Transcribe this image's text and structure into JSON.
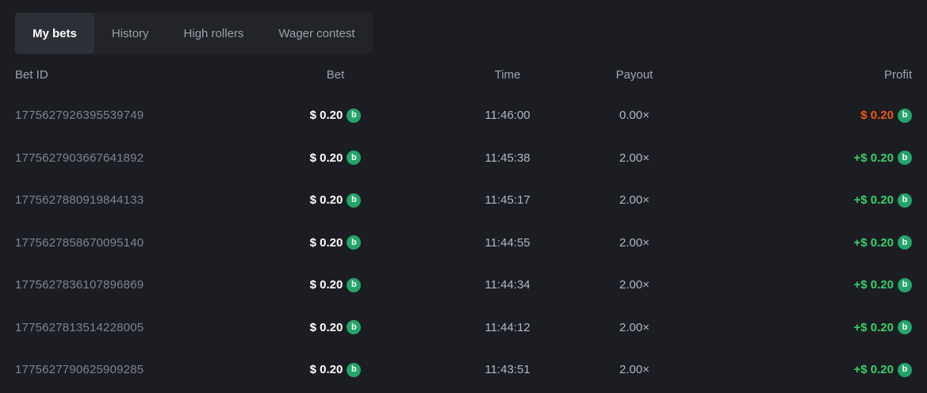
{
  "tabs": [
    {
      "id": "my-bets",
      "label": "My bets",
      "active": true
    },
    {
      "id": "history",
      "label": "History",
      "active": false
    },
    {
      "id": "high-rollers",
      "label": "High rollers",
      "active": false
    },
    {
      "id": "wager-contest",
      "label": "Wager contest",
      "active": false
    }
  ],
  "table": {
    "headers": {
      "bet_id": "Bet ID",
      "bet": "Bet",
      "time": "Time",
      "payout": "Payout",
      "profit": "Profit"
    },
    "coin_icon_glyph": "b",
    "rows": [
      {
        "bet_id": "1775627926395539749",
        "bet": "$ 0.20",
        "time": "11:46:00",
        "payout": "0.00×",
        "profit": "$ 0.20",
        "result": "loss"
      },
      {
        "bet_id": "1775627903667641892",
        "bet": "$ 0.20",
        "time": "11:45:38",
        "payout": "2.00×",
        "profit": "+$ 0.20",
        "result": "win"
      },
      {
        "bet_id": "1775627880919844133",
        "bet": "$ 0.20",
        "time": "11:45:17",
        "payout": "2.00×",
        "profit": "+$ 0.20",
        "result": "win"
      },
      {
        "bet_id": "1775627858670095140",
        "bet": "$ 0.20",
        "time": "11:44:55",
        "payout": "2.00×",
        "profit": "+$ 0.20",
        "result": "win"
      },
      {
        "bet_id": "1775627836107896869",
        "bet": "$ 0.20",
        "time": "11:44:34",
        "payout": "2.00×",
        "profit": "+$ 0.20",
        "result": "win"
      },
      {
        "bet_id": "1775627813514228005",
        "bet": "$ 0.20",
        "time": "11:44:12",
        "payout": "2.00×",
        "profit": "+$ 0.20",
        "result": "win"
      },
      {
        "bet_id": "1775627790625909285",
        "bet": "$ 0.20",
        "time": "11:43:51",
        "payout": "2.00×",
        "profit": "+$ 0.20",
        "result": "win"
      }
    ]
  },
  "colors": {
    "win": "#35d06a",
    "loss": "#ed5a13",
    "coin": "#24a46a",
    "background": "#1c1d22"
  }
}
